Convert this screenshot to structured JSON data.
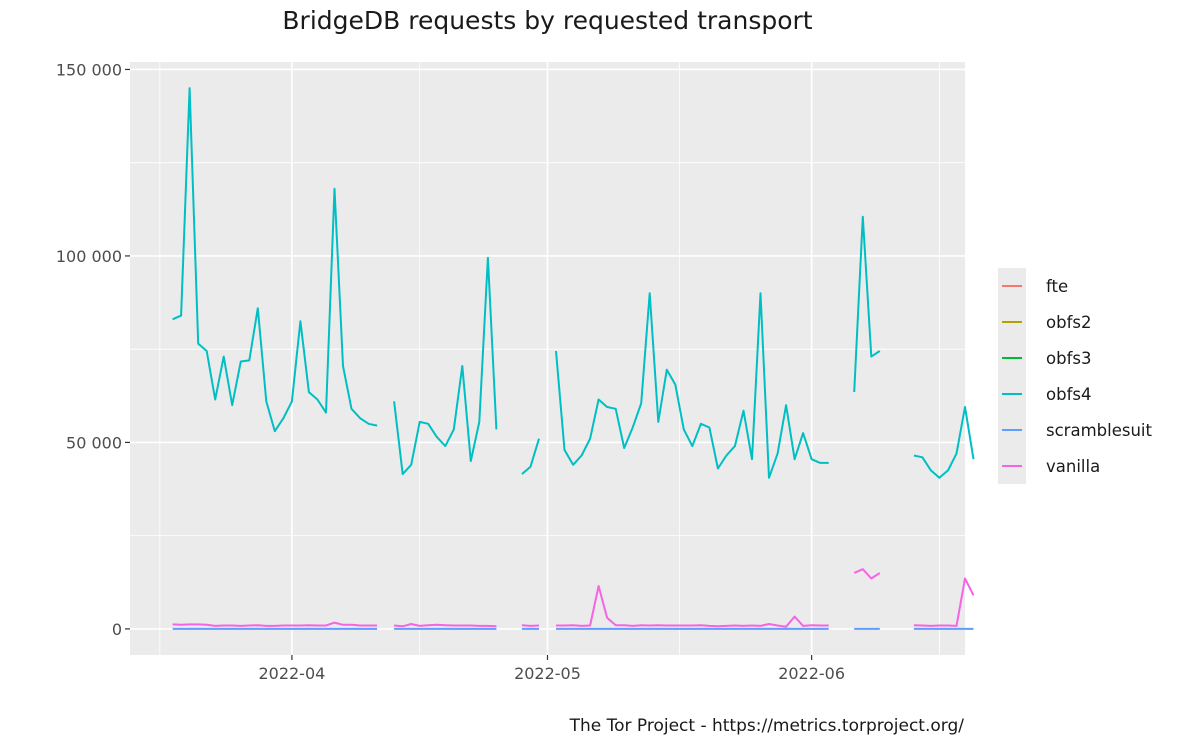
{
  "title": "BridgeDB requests by requested transport",
  "caption": "The Tor Project - https://metrics.torproject.org/",
  "chart_data": {
    "type": "line",
    "title": "BridgeDB requests by requested transport",
    "xlabel": "",
    "ylabel": "",
    "x_start": "2022-03-18",
    "xlim": [
      "2022-03-13",
      "2022-06-19"
    ],
    "ylim": [
      -7000,
      152000
    ],
    "x_ticks": [
      {
        "date": "2022-04-01",
        "label": "2022-04"
      },
      {
        "date": "2022-05-01",
        "label": "2022-05"
      },
      {
        "date": "2022-06-01",
        "label": "2022-06"
      }
    ],
    "y_ticks": [
      {
        "value": 0,
        "label": "0"
      },
      {
        "value": 50000,
        "label": "50 000"
      },
      {
        "value": 100000,
        "label": "100 000"
      },
      {
        "value": 150000,
        "label": "150 000"
      }
    ],
    "grid": true,
    "legend_position": "right",
    "series": [
      {
        "name": "fte",
        "color": "#F8766D",
        "values": []
      },
      {
        "name": "obfs2",
        "color": "#B79F00",
        "values": []
      },
      {
        "name": "obfs3",
        "color": "#00BA38",
        "values": []
      },
      {
        "name": "obfs4",
        "color": "#00BFC4",
        "values": [
          83000,
          84000,
          145000,
          76500,
          74500,
          61500,
          73000,
          60000,
          71700,
          72000,
          86000,
          61000,
          53000,
          56500,
          61000,
          82500,
          63500,
          61500,
          58000,
          118000,
          70500,
          59000,
          56500,
          55000,
          54500,
          null,
          61000,
          41500,
          44000,
          55500,
          55000,
          51500,
          49000,
          53500,
          70500,
          45000,
          55500,
          99500,
          53500,
          null,
          null,
          41500,
          43500,
          51000,
          null,
          74500,
          48000,
          44000,
          46500,
          51000,
          61500,
          59500,
          59000,
          48500,
          54000,
          60500,
          90000,
          55500,
          69500,
          65500,
          53500,
          49000,
          55000,
          54000,
          43000,
          46500,
          49000,
          58500,
          45500,
          90000,
          40500,
          47000,
          60000,
          45500,
          52500,
          45500,
          44500,
          44500,
          null,
          null,
          63500,
          110500,
          73000,
          74500,
          null,
          null,
          null,
          46500,
          46000,
          42500,
          40500,
          42500,
          47000,
          59500,
          45500
        ]
      },
      {
        "name": "scramblesuit",
        "color": "#619CFF",
        "values": [
          0,
          0,
          0,
          0,
          0,
          0,
          0,
          0,
          0,
          0,
          0,
          0,
          0,
          0,
          0,
          0,
          0,
          0,
          0,
          0,
          0,
          0,
          0,
          0,
          0,
          null,
          0,
          0,
          0,
          0,
          0,
          0,
          0,
          0,
          0,
          0,
          0,
          0,
          0,
          null,
          null,
          0,
          0,
          0,
          null,
          0,
          0,
          0,
          0,
          0,
          0,
          0,
          0,
          0,
          0,
          0,
          0,
          0,
          0,
          0,
          0,
          0,
          0,
          0,
          0,
          0,
          0,
          0,
          0,
          0,
          0,
          0,
          0,
          0,
          0,
          0,
          0,
          0,
          null,
          null,
          0,
          0,
          0,
          0,
          null,
          null,
          null,
          0,
          0,
          0,
          0,
          0,
          0,
          0,
          0
        ]
      },
      {
        "name": "vanilla",
        "color": "#F564E3",
        "values": [
          1200,
          1100,
          1200,
          1200,
          1100,
          800,
          900,
          900,
          800,
          900,
          1000,
          800,
          800,
          900,
          900,
          900,
          1000,
          900,
          900,
          1700,
          1100,
          1100,
          900,
          900,
          900,
          null,
          900,
          700,
          1300,
          800,
          1000,
          1100,
          1000,
          900,
          900,
          900,
          800,
          800,
          700,
          null,
          null,
          1000,
          800,
          900,
          null,
          900,
          900,
          1000,
          800,
          900,
          11500,
          3000,
          1000,
          1000,
          800,
          1000,
          900,
          1000,
          900,
          900,
          900,
          900,
          1000,
          800,
          700,
          800,
          900,
          800,
          900,
          800,
          1300,
          900,
          600,
          3300,
          800,
          1000,
          900,
          900,
          null,
          null,
          15000,
          16000,
          13500,
          15000,
          null,
          null,
          null,
          1000,
          900,
          800,
          900,
          900,
          800,
          13500,
          9000
        ]
      }
    ]
  }
}
